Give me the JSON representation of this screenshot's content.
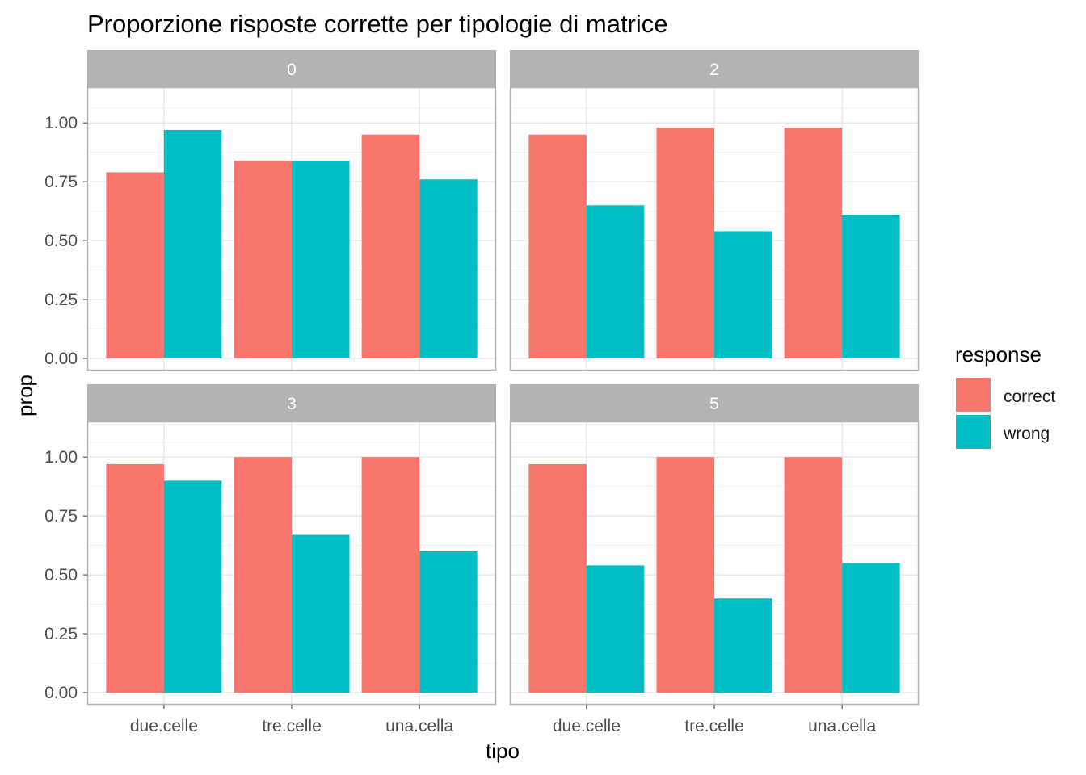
{
  "chart_data": {
    "type": "bar",
    "title": "Proporzione risposte corrette per tipologie di matrice",
    "xlabel": "tipo",
    "ylabel": "prop",
    "ylim": [
      0,
      1.1
    ],
    "yticks": [
      "0.00",
      "0.25",
      "0.50",
      "0.75",
      "1.00"
    ],
    "grid": true,
    "legend": {
      "title": "response",
      "position": "right",
      "entries": [
        {
          "name": "correct",
          "color": "#F8766D"
        },
        {
          "name": "wrong",
          "color": "#00BFC4"
        }
      ]
    },
    "categories": [
      "due.celle",
      "tre.celle",
      "una.cella"
    ],
    "panels": [
      {
        "label": "0",
        "series": [
          {
            "name": "correct",
            "color": "#F8766D",
            "values": [
              0.79,
              0.84,
              0.95
            ]
          },
          {
            "name": "wrong",
            "color": "#00BFC4",
            "values": [
              0.97,
              0.84,
              0.76
            ]
          }
        ]
      },
      {
        "label": "2",
        "series": [
          {
            "name": "correct",
            "color": "#F8766D",
            "values": [
              0.95,
              0.98,
              0.98
            ]
          },
          {
            "name": "wrong",
            "color": "#00BFC4",
            "values": [
              0.65,
              0.54,
              0.61
            ]
          }
        ]
      },
      {
        "label": "3",
        "series": [
          {
            "name": "correct",
            "color": "#F8766D",
            "values": [
              0.97,
              1.0,
              1.0
            ]
          },
          {
            "name": "wrong",
            "color": "#00BFC4",
            "values": [
              0.9,
              0.67,
              0.6
            ]
          }
        ]
      },
      {
        "label": "5",
        "series": [
          {
            "name": "correct",
            "color": "#F8766D",
            "values": [
              0.97,
              1.0,
              1.0
            ]
          },
          {
            "name": "wrong",
            "color": "#00BFC4",
            "values": [
              0.54,
              0.4,
              0.55
            ]
          }
        ]
      }
    ]
  }
}
